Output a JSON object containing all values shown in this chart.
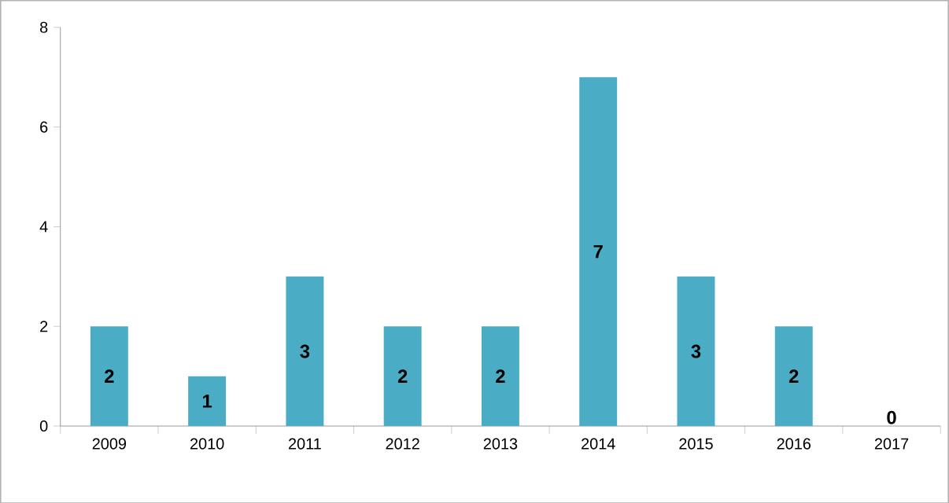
{
  "chart_data": {
    "type": "bar",
    "categories": [
      "2009",
      "2010",
      "2011",
      "2012",
      "2013",
      "2014",
      "2015",
      "2016",
      "2017"
    ],
    "values": [
      2,
      1,
      3,
      2,
      2,
      7,
      3,
      2,
      0
    ],
    "color": "#4bacc6",
    "ylim": [
      0,
      8
    ],
    "yticks": [
      0,
      2,
      4,
      6,
      8
    ],
    "data_labels": true
  }
}
